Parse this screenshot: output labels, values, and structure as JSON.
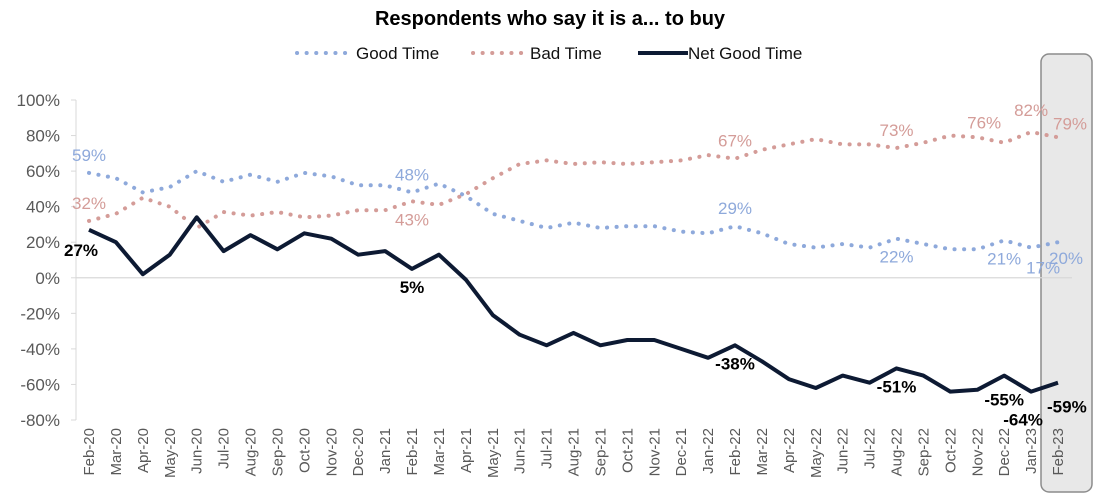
{
  "chart_data": {
    "type": "line",
    "title": "Respondents who say it is a... to buy",
    "xlabel": "",
    "ylabel": "",
    "ylim": [
      -80,
      100
    ],
    "yticks": [
      100,
      80,
      60,
      40,
      20,
      0,
      -20,
      -40,
      -60,
      -80
    ],
    "ytick_labels": [
      "100%",
      "80%",
      "60%",
      "40%",
      "20%",
      "0%",
      "-20%",
      "-40%",
      "-60%",
      "-80%"
    ],
    "grid": false,
    "zero_line": true,
    "legend_position": "top-center",
    "highlight_category": "Feb-23",
    "categories": [
      "Feb-20",
      "Mar-20",
      "Apr-20",
      "May-20",
      "Jun-20",
      "Jul-20",
      "Aug-20",
      "Sep-20",
      "Oct-20",
      "Nov-20",
      "Dec-20",
      "Jan-21",
      "Feb-21",
      "Mar-21",
      "Apr-21",
      "May-21",
      "Jun-21",
      "Jul-21",
      "Aug-21",
      "Sep-21",
      "Oct-21",
      "Nov-21",
      "Dec-21",
      "Jan-22",
      "Feb-22",
      "Mar-22",
      "Apr-22",
      "May-22",
      "Jun-22",
      "Jul-22",
      "Aug-22",
      "Sep-22",
      "Oct-22",
      "Nov-22",
      "Dec-22",
      "Jan-23",
      "Feb-23"
    ],
    "series": [
      {
        "name": "Good Time",
        "style": "dotted",
        "color": "#8ea9db",
        "values": [
          59,
          56,
          48,
          51,
          60,
          54,
          58,
          54,
          59,
          57,
          52,
          52,
          48,
          53,
          46,
          36,
          32,
          28,
          31,
          28,
          29,
          29,
          26,
          25,
          29,
          25,
          19,
          17,
          19,
          17,
          22,
          19,
          16,
          16,
          21,
          17,
          20
        ],
        "labels": [
          {
            "index": 0,
            "text": "59%",
            "pos": "above"
          },
          {
            "index": 12,
            "text": "48%",
            "pos": "above"
          },
          {
            "index": 24,
            "text": "29%",
            "pos": "above"
          },
          {
            "index": 30,
            "text": "22%",
            "pos": "below"
          },
          {
            "index": 34,
            "text": "21%",
            "pos": "below"
          },
          {
            "index": 35,
            "text": "17%",
            "pos": "below2"
          },
          {
            "index": 36,
            "text": "20%",
            "pos": "right-below"
          }
        ]
      },
      {
        "name": "Bad Time",
        "style": "dotted",
        "color": "#d49c98",
        "values": [
          32,
          36,
          45,
          40,
          28,
          37,
          35,
          37,
          34,
          35,
          38,
          38,
          43,
          41,
          47,
          56,
          64,
          66,
          64,
          65,
          64,
          65,
          66,
          69,
          67,
          72,
          75,
          78,
          75,
          75,
          73,
          76,
          80,
          79,
          76,
          82,
          79
        ],
        "labels": [
          {
            "index": 0,
            "text": "32%",
            "pos": "above"
          },
          {
            "index": 12,
            "text": "43%",
            "pos": "below"
          },
          {
            "index": 24,
            "text": "67%",
            "pos": "above"
          },
          {
            "index": 30,
            "text": "73%",
            "pos": "above"
          },
          {
            "index": 34,
            "text": "76%",
            "pos": "above"
          },
          {
            "index": 35,
            "text": "82%",
            "pos": "above"
          },
          {
            "index": 36,
            "text": "79%",
            "pos": "right-above"
          }
        ]
      },
      {
        "name": "Net Good Time",
        "style": "solid",
        "color": "#0d1a33",
        "values": [
          27,
          20,
          2,
          13,
          34,
          15,
          24,
          16,
          25,
          22,
          13,
          15,
          5,
          13,
          -1,
          -21,
          -32,
          -38,
          -31,
          -38,
          -35,
          -35,
          -40,
          -45,
          -38,
          -47,
          -57,
          -62,
          -55,
          -59,
          -51,
          -55,
          -64,
          -63,
          -55,
          -64,
          -59
        ],
        "labels": [
          {
            "index": 0,
            "text": "27%",
            "pos": "below"
          },
          {
            "index": 12,
            "text": "5%",
            "pos": "below"
          },
          {
            "index": 24,
            "text": "-38%",
            "pos": "below"
          },
          {
            "index": 30,
            "text": "-51%",
            "pos": "below"
          },
          {
            "index": 34,
            "text": "-55%",
            "pos": "below"
          },
          {
            "index": 35,
            "text": "-64%",
            "pos": "below"
          },
          {
            "index": 36,
            "text": "-59%",
            "pos": "right-below"
          }
        ]
      }
    ]
  }
}
